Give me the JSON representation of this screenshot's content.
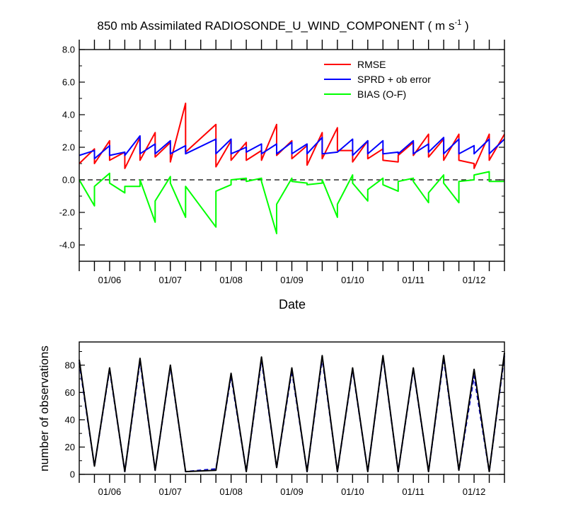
{
  "title": {
    "main": "850 mb Assimilated RADIOSONDE_U_WIND_COMPONENT ( m s",
    "sup": "-1",
    "close": " )"
  },
  "colors": {
    "rmse": "#ff0000",
    "sprd": "#0000ff",
    "bias": "#00ff00",
    "obs_used": "#0000cc",
    "obs_possible": "#000000"
  },
  "chart_data": [
    {
      "type": "line",
      "title": "850 mb Assimilated RADIOSONDE_U_WIND_COMPONENT ( m s-1 )",
      "xlabel": "Date",
      "ylabel": "",
      "x_tick_labels": [
        "01/06",
        "01/07",
        "01/08",
        "01/09",
        "01/10",
        "01/11",
        "01/12"
      ],
      "x_tick_positions": [
        6,
        7,
        8,
        9,
        10,
        11,
        12
      ],
      "xlim": [
        5.5,
        12.5
      ],
      "ylim": [
        -5,
        8
      ],
      "y_tick_labels": [
        "8.0",
        "6.0",
        "4.0",
        "2.0",
        "0.0",
        "-2.0",
        "-4.0"
      ],
      "y_tick_values": [
        8,
        6,
        4,
        2,
        0,
        -2,
        -4
      ],
      "legend_position": "top-right",
      "zero_line": "dashed",
      "series": [
        {
          "name": "RMSE",
          "x": [
            5.5,
            5.75,
            5.75,
            6,
            6,
            6.25,
            6.25,
            6.5,
            6.5,
            6.75,
            6.75,
            7,
            7,
            7.25,
            7.25,
            7.75,
            7.75,
            8,
            8,
            8.25,
            8.25,
            8.5,
            8.5,
            8.75,
            8.75,
            9,
            9,
            9.25,
            9.25,
            9.5,
            9.5,
            9.75,
            9.75,
            10,
            10,
            10.25,
            10.25,
            10.5,
            10.5,
            10.75,
            10.75,
            11,
            11,
            11.25,
            11.25,
            11.5,
            11.5,
            11.75,
            11.75,
            12,
            12,
            12.25,
            12.25,
            12.5
          ],
          "y": [
            1.0,
            1.9,
            1.0,
            2.4,
            1.2,
            1.7,
            0.7,
            2.6,
            1.2,
            2.9,
            1.4,
            2.3,
            1.1,
            4.7,
            1.7,
            3.4,
            0.8,
            2.4,
            1.2,
            2.3,
            1.2,
            1.8,
            1.2,
            3.4,
            1.5,
            2.4,
            1.3,
            2.1,
            0.9,
            2.9,
            1.3,
            3.2,
            1.8,
            1.8,
            1.1,
            2.4,
            1.3,
            1.9,
            1.2,
            1.1,
            1.5,
            2.3,
            1.5,
            2.8,
            1.4,
            2.5,
            1.2,
            2.8,
            1.2,
            1.0,
            0.7,
            2.8,
            1.2,
            2.8
          ]
        },
        {
          "name": "SPRD + ob error",
          "x": [
            5.5,
            5.75,
            5.75,
            6,
            6,
            6.25,
            6.25,
            6.5,
            6.5,
            6.75,
            6.75,
            7,
            7,
            7.25,
            7.25,
            7.75,
            7.75,
            8,
            8,
            8.25,
            8.25,
            8.5,
            8.5,
            8.75,
            8.75,
            9,
            9,
            9.25,
            9.25,
            9.5,
            9.5,
            9.75,
            9.75,
            10,
            10,
            10.25,
            10.25,
            10.5,
            10.5,
            10.75,
            10.75,
            11,
            11,
            11.25,
            11.25,
            11.5,
            11.5,
            11.75,
            11.75,
            12,
            12,
            12.25,
            12.25,
            12.5
          ],
          "y": [
            1.5,
            1.8,
            1.3,
            2.1,
            1.5,
            1.7,
            1.5,
            2.7,
            1.6,
            2.2,
            1.6,
            2.4,
            1.6,
            2.1,
            1.6,
            2.5,
            1.6,
            2.5,
            1.6,
            2.0,
            1.7,
            2.2,
            1.6,
            2.2,
            1.6,
            2.3,
            1.6,
            2.2,
            1.6,
            2.6,
            1.6,
            1.7,
            1.7,
            2.5,
            1.5,
            2.4,
            1.6,
            2.4,
            1.6,
            1.7,
            1.6,
            2.4,
            1.6,
            2.2,
            1.7,
            2.6,
            1.6,
            2.5,
            1.6,
            2.1,
            1.6,
            2.5,
            1.6,
            2.5
          ]
        },
        {
          "name": "BIAS (O-F)",
          "x": [
            5.5,
            5.75,
            5.75,
            6,
            6,
            6.25,
            6.25,
            6.5,
            6.5,
            6.75,
            6.75,
            7,
            7,
            7.25,
            7.25,
            7.75,
            7.75,
            8,
            8,
            8.25,
            8.25,
            8.5,
            8.5,
            8.75,
            8.75,
            9,
            9,
            9.25,
            9.25,
            9.5,
            9.5,
            9.75,
            9.75,
            10,
            10,
            10.25,
            10.25,
            10.5,
            10.5,
            10.75,
            10.75,
            11,
            11,
            11.25,
            11.25,
            11.5,
            11.5,
            11.75,
            11.75,
            12,
            12,
            12.25,
            12.25,
            12.5
          ],
          "y": [
            0.0,
            -1.6,
            -0.4,
            0.4,
            -0.2,
            -0.8,
            -0.4,
            -0.4,
            0.0,
            -2.6,
            -1.3,
            0.2,
            -0.2,
            -2.3,
            -0.4,
            -2.9,
            -0.7,
            -0.3,
            0.0,
            0.1,
            -0.1,
            0.1,
            -0.1,
            -3.3,
            -1.5,
            0.1,
            -0.1,
            -0.2,
            -0.3,
            -0.2,
            0.0,
            -2.3,
            -1.5,
            0.3,
            -0.2,
            -1.3,
            -0.6,
            0.1,
            -0.3,
            -0.7,
            -0.1,
            0.1,
            -0.1,
            -1.4,
            -0.8,
            0.3,
            -0.2,
            -1.4,
            -0.1,
            0.0,
            0.3,
            0.5,
            -0.1,
            -0.1
          ]
        }
      ]
    },
    {
      "type": "line",
      "title": "",
      "xlabel": "",
      "ylabel": "number of observations",
      "x_tick_labels": [
        "01/06",
        "01/07",
        "01/08",
        "01/09",
        "01/10",
        "01/11",
        "01/12"
      ],
      "x_tick_positions": [
        6,
        7,
        8,
        9,
        10,
        11,
        12
      ],
      "xlim": [
        5.5,
        12.5
      ],
      "ylim": [
        0,
        97
      ],
      "y_tick_labels": [
        "0",
        "20",
        "40",
        "60",
        "80"
      ],
      "y_tick_values": [
        0,
        20,
        40,
        60,
        80
      ],
      "series": [
        {
          "style": "dashed",
          "color": "obs_used",
          "x": [
            5.5,
            5.75,
            6,
            6.25,
            6.5,
            6.75,
            7,
            7.25,
            7.75,
            8,
            8.25,
            8.5,
            8.75,
            9,
            9.25,
            9.5,
            9.75,
            10,
            10.25,
            10.5,
            10.75,
            11,
            11.25,
            11.5,
            11.75,
            12,
            12.25,
            12.5
          ],
          "y": [
            82,
            6,
            77,
            2,
            83,
            3,
            79,
            2,
            4,
            72,
            2,
            84,
            5,
            76,
            2,
            85,
            2,
            77,
            2,
            86,
            2,
            77,
            2,
            85,
            3,
            72,
            2,
            87
          ]
        },
        {
          "style": "solid",
          "color": "obs_possible",
          "x": [
            5.5,
            5.75,
            6,
            6.25,
            6.5,
            6.75,
            7,
            7.25,
            7.75,
            8,
            8.25,
            8.5,
            8.75,
            9,
            9.25,
            9.5,
            9.75,
            10,
            10.25,
            10.5,
            10.75,
            11,
            11.25,
            11.5,
            11.75,
            12,
            12.25,
            12.5
          ],
          "y": [
            84,
            6,
            78,
            2,
            85,
            3,
            80,
            2,
            3,
            74,
            2,
            86,
            5,
            78,
            2,
            87,
            2,
            78,
            2,
            87,
            2,
            78,
            2,
            87,
            3,
            77,
            2,
            89
          ]
        }
      ]
    }
  ]
}
